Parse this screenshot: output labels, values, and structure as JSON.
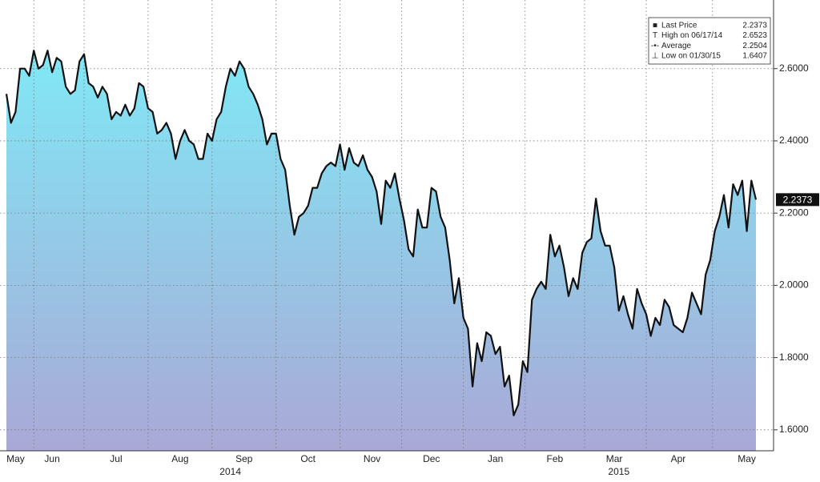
{
  "chart_data": {
    "type": "area",
    "color": "#111111",
    "fill_top": "#80e9f6",
    "fill_bottom": "#aaa8d6",
    "grid": true,
    "categories": [
      null,
      null,
      "May",
      null,
      null,
      null,
      null,
      null,
      null,
      null,
      "Jun",
      null,
      null,
      null,
      null,
      null,
      null,
      null,
      null,
      null,
      null,
      null,
      null,
      null,
      "Jul",
      null,
      null,
      null,
      null,
      null,
      null,
      null,
      null,
      null,
      null,
      null,
      null,
      null,
      "Aug",
      null,
      null,
      null,
      null,
      null,
      null,
      null,
      null,
      null,
      null,
      null,
      null,
      null,
      "Sep",
      null,
      null,
      null,
      null,
      null,
      null,
      null,
      null,
      null,
      null,
      null,
      null,
      null,
      "Oct",
      null,
      null,
      null,
      null,
      null,
      null,
      null,
      null,
      null,
      null,
      null,
      null,
      null,
      "Nov",
      null,
      null,
      null,
      null,
      null,
      null,
      null,
      null,
      null,
      null,
      null,
      null,
      "Dec",
      null,
      null,
      null,
      null,
      null,
      null,
      null,
      null,
      null,
      null,
      null,
      null,
      null,
      "Jan",
      null,
      null,
      null,
      null,
      null,
      null,
      null,
      null,
      null,
      null,
      null,
      null,
      "Feb",
      null,
      null,
      null,
      null,
      null,
      null,
      null,
      null,
      null,
      null,
      null,
      null,
      "Mar",
      null,
      null,
      null,
      null,
      null,
      null,
      null,
      null,
      null,
      null,
      null,
      null,
      null,
      "Apr",
      null,
      null,
      null,
      null,
      null,
      null,
      null,
      null,
      null,
      null,
      null,
      null,
      null,
      null,
      "May",
      null,
      null
    ],
    "x_groups": [
      null,
      null,
      null,
      null,
      null,
      null,
      null,
      null,
      null,
      null,
      null,
      null,
      null,
      null,
      null,
      null,
      null,
      null,
      null,
      null,
      null,
      null,
      null,
      null,
      null,
      null,
      null,
      null,
      null,
      null,
      null,
      null,
      null,
      null,
      null,
      null,
      null,
      null,
      null,
      null,
      null,
      null,
      null,
      null,
      null,
      null,
      null,
      null,
      null,
      "2014",
      null,
      null,
      null,
      null,
      null,
      null,
      null,
      null,
      null,
      null,
      null,
      null,
      null,
      null,
      null,
      null,
      null,
      null,
      null,
      null,
      null,
      null,
      null,
      null,
      null,
      null,
      null,
      null,
      null,
      null,
      null,
      null,
      null,
      null,
      null,
      null,
      null,
      null,
      null,
      null,
      null,
      null,
      null,
      null,
      null,
      null,
      null,
      null,
      null,
      null,
      null,
      null,
      null,
      null,
      null,
      null,
      null,
      null,
      null,
      null,
      null,
      null,
      null,
      null,
      null,
      null,
      null,
      null,
      null,
      null,
      null,
      null,
      null,
      null,
      null,
      null,
      null,
      null,
      null,
      null,
      null,
      null,
      null,
      null,
      "2015",
      null,
      null,
      null,
      null,
      null,
      null,
      null,
      null,
      null,
      null,
      null,
      null,
      null,
      null,
      null,
      null,
      null,
      null,
      null,
      null,
      null,
      null,
      null,
      null,
      null,
      null,
      null,
      null,
      null
    ],
    "values": [
      2.53,
      2.45,
      2.48,
      2.6,
      2.6,
      2.58,
      2.65,
      2.6,
      2.61,
      2.65,
      2.59,
      2.63,
      2.62,
      2.55,
      2.53,
      2.54,
      2.62,
      2.64,
      2.56,
      2.55,
      2.52,
      2.55,
      2.53,
      2.46,
      2.48,
      2.47,
      2.5,
      2.47,
      2.49,
      2.56,
      2.55,
      2.49,
      2.48,
      2.42,
      2.43,
      2.45,
      2.42,
      2.35,
      2.4,
      2.43,
      2.4,
      2.39,
      2.35,
      2.35,
      2.42,
      2.4,
      2.46,
      2.48,
      2.55,
      2.6,
      2.58,
      2.62,
      2.6,
      2.55,
      2.53,
      2.5,
      2.46,
      2.39,
      2.42,
      2.42,
      2.35,
      2.32,
      2.22,
      2.14,
      2.19,
      2.2,
      2.22,
      2.27,
      2.27,
      2.31,
      2.33,
      2.34,
      2.33,
      2.39,
      2.32,
      2.38,
      2.34,
      2.33,
      2.36,
      2.32,
      2.3,
      2.26,
      2.17,
      2.29,
      2.27,
      2.31,
      2.24,
      2.18,
      2.1,
      2.08,
      2.21,
      2.16,
      2.16,
      2.27,
      2.26,
      2.19,
      2.16,
      2.07,
      1.95,
      2.02,
      1.91,
      1.88,
      1.72,
      1.84,
      1.79,
      1.87,
      1.86,
      1.81,
      1.83,
      1.72,
      1.75,
      1.64,
      1.67,
      1.79,
      1.76,
      1.96,
      1.99,
      2.01,
      1.99,
      2.14,
      2.08,
      2.11,
      2.05,
      1.97,
      2.02,
      1.99,
      2.09,
      2.12,
      2.13,
      2.24,
      2.15,
      2.11,
      2.11,
      2.05,
      1.93,
      1.97,
      1.92,
      1.88,
      1.99,
      1.95,
      1.92,
      1.86,
      1.91,
      1.89,
      1.96,
      1.94,
      1.89,
      1.88,
      1.87,
      1.91,
      1.98,
      1.95,
      1.92,
      2.03,
      2.07,
      2.15,
      2.19,
      2.25,
      2.16,
      2.28,
      2.25,
      2.29,
      2.15,
      2.29,
      2.2373
    ],
    "ylim": [
      1.542,
      2.79
    ],
    "yticks": [
      {
        "value": 1.6,
        "label": "1.6000"
      },
      {
        "value": 1.8,
        "label": "1.8000"
      },
      {
        "value": 2.0,
        "label": "2.0000"
      },
      {
        "value": 2.2,
        "label": "2.2000"
      },
      {
        "value": 2.4,
        "label": "2.4000"
      },
      {
        "value": 2.6,
        "label": "2.6000"
      }
    ],
    "legend": [
      {
        "label": "Last Price",
        "value": 2.2373
      },
      {
        "label": "High on 06/17/14",
        "value": 2.6523
      },
      {
        "label": "Average",
        "value": 2.2504
      },
      {
        "label": "Low on 01/30/15",
        "value": 1.6407
      }
    ]
  }
}
